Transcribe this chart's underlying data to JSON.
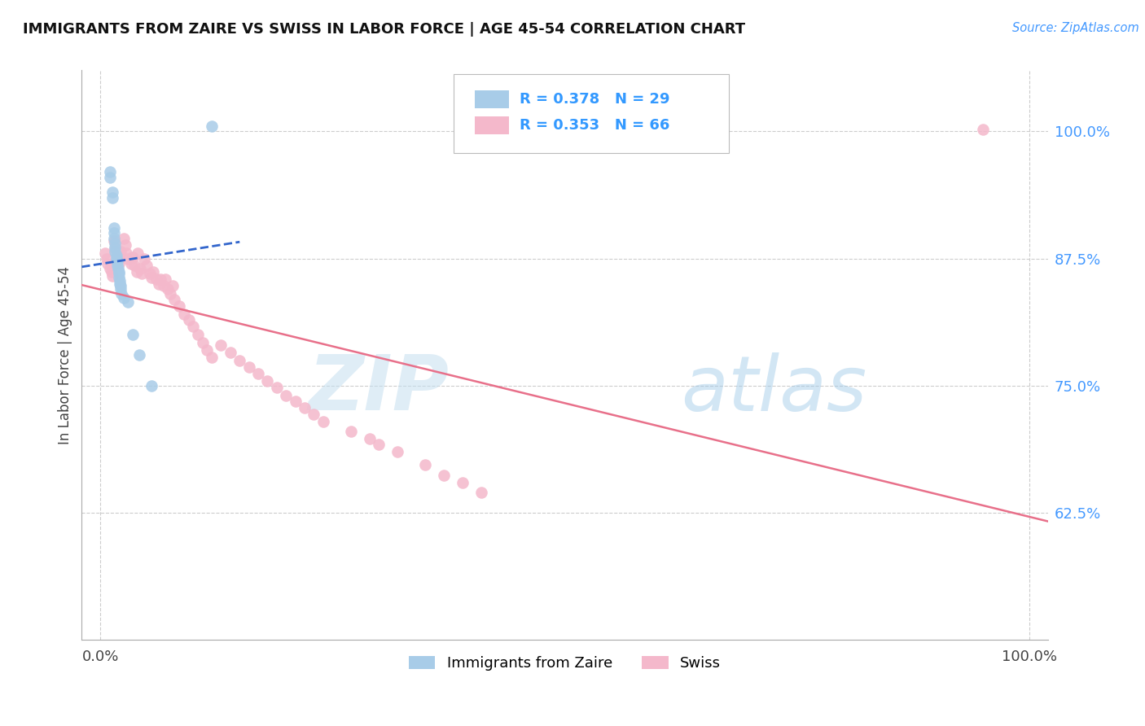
{
  "title": "IMMIGRANTS FROM ZAIRE VS SWISS IN LABOR FORCE | AGE 45-54 CORRELATION CHART",
  "source": "Source: ZipAtlas.com",
  "ylabel": "In Labor Force | Age 45-54",
  "xlim": [
    -0.02,
    1.02
  ],
  "ylim": [
    0.5,
    1.06
  ],
  "x_ticks": [
    0.0,
    1.0
  ],
  "x_tick_labels": [
    "0.0%",
    "100.0%"
  ],
  "y_tick_positions": [
    0.625,
    0.75,
    0.875,
    1.0
  ],
  "y_tick_labels": [
    "62.5%",
    "75.0%",
    "87.5%",
    "100.0%"
  ],
  "blue_R": 0.378,
  "blue_N": 29,
  "pink_R": 0.353,
  "pink_N": 66,
  "blue_color": "#a8cce8",
  "pink_color": "#f4b8cb",
  "blue_line_color": "#3366cc",
  "pink_line_color": "#e8708a",
  "watermark_zip": "ZIP",
  "watermark_atlas": "atlas",
  "legend_label_blue": "Immigrants from Zaire",
  "legend_label_pink": "Swiss",
  "blue_x": [
    0.01,
    0.01,
    0.013,
    0.013,
    0.015,
    0.015,
    0.015,
    0.016,
    0.016,
    0.016,
    0.017,
    0.017,
    0.018,
    0.018,
    0.019,
    0.02,
    0.02,
    0.02,
    0.021,
    0.021,
    0.022,
    0.022,
    0.023,
    0.025,
    0.03,
    0.035,
    0.042,
    0.055,
    0.12
  ],
  "blue_y": [
    0.96,
    0.955,
    0.94,
    0.935,
    0.905,
    0.9,
    0.895,
    0.89,
    0.886,
    0.882,
    0.878,
    0.875,
    0.872,
    0.868,
    0.865,
    0.862,
    0.86,
    0.856,
    0.853,
    0.85,
    0.848,
    0.845,
    0.84,
    0.836,
    0.832,
    0.8,
    0.78,
    0.75,
    1.005
  ],
  "pink_x": [
    0.005,
    0.007,
    0.008,
    0.01,
    0.012,
    0.013,
    0.015,
    0.016,
    0.018,
    0.019,
    0.02,
    0.022,
    0.025,
    0.027,
    0.028,
    0.03,
    0.033,
    0.035,
    0.037,
    0.039,
    0.04,
    0.043,
    0.045,
    0.047,
    0.05,
    0.053,
    0.055,
    0.057,
    0.06,
    0.063,
    0.065,
    0.068,
    0.07,
    0.073,
    0.075,
    0.078,
    0.08,
    0.085,
    0.09,
    0.095,
    0.1,
    0.105,
    0.11,
    0.115,
    0.12,
    0.13,
    0.14,
    0.15,
    0.16,
    0.17,
    0.18,
    0.19,
    0.2,
    0.21,
    0.22,
    0.23,
    0.24,
    0.27,
    0.29,
    0.3,
    0.32,
    0.35,
    0.37,
    0.39,
    0.41,
    0.95
  ],
  "pink_y": [
    0.88,
    0.875,
    0.87,
    0.865,
    0.862,
    0.858,
    0.892,
    0.885,
    0.878,
    0.875,
    0.87,
    0.882,
    0.895,
    0.888,
    0.88,
    0.875,
    0.87,
    0.876,
    0.868,
    0.862,
    0.88,
    0.865,
    0.86,
    0.875,
    0.868,
    0.86,
    0.856,
    0.862,
    0.855,
    0.85,
    0.855,
    0.848,
    0.855,
    0.845,
    0.84,
    0.848,
    0.835,
    0.828,
    0.82,
    0.815,
    0.808,
    0.8,
    0.792,
    0.785,
    0.778,
    0.79,
    0.783,
    0.775,
    0.768,
    0.762,
    0.755,
    0.748,
    0.74,
    0.735,
    0.728,
    0.722,
    0.715,
    0.705,
    0.698,
    0.692,
    0.685,
    0.672,
    0.662,
    0.655,
    0.645,
    1.002
  ]
}
